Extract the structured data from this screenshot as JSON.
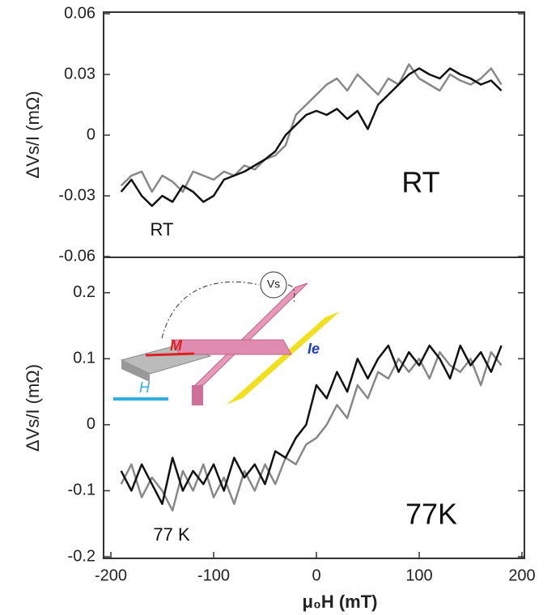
{
  "chart_data": [
    {
      "type": "line",
      "ylabel": "ΔVs/I (mΩ)",
      "annotations": [
        "RT",
        "RT"
      ],
      "x": [
        -190,
        -180,
        -170,
        -160,
        -150,
        -140,
        -130,
        -120,
        -110,
        -100,
        -90,
        -80,
        -70,
        -60,
        -50,
        -40,
        -30,
        -20,
        -10,
        0,
        10,
        20,
        30,
        40,
        50,
        60,
        70,
        80,
        90,
        100,
        110,
        120,
        130,
        140,
        150,
        160,
        170,
        180
      ],
      "xlim": [
        -200,
        200
      ],
      "ylim": [
        -0.06,
        0.06
      ],
      "yticks": [
        0.06,
        0.03,
        0,
        -0.03,
        -0.06
      ],
      "series": [
        {
          "color": "#888888",
          "values": [
            -0.025,
            -0.02,
            -0.018,
            -0.028,
            -0.02,
            -0.023,
            -0.028,
            -0.018,
            -0.02,
            -0.022,
            -0.018,
            -0.02,
            -0.015,
            -0.017,
            -0.012,
            -0.01,
            -0.005,
            0.01,
            0.015,
            0.02,
            0.025,
            0.028,
            0.022,
            0.03,
            0.025,
            0.02,
            0.028,
            0.025,
            0.035,
            0.028,
            0.025,
            0.022,
            0.03,
            0.027,
            0.025,
            0.028,
            0.033,
            0.025
          ]
        },
        {
          "color": "#111111",
          "values": [
            -0.028,
            -0.022,
            -0.03,
            -0.035,
            -0.03,
            -0.033,
            -0.025,
            -0.028,
            -0.033,
            -0.03,
            -0.022,
            -0.02,
            -0.018,
            -0.015,
            -0.012,
            -0.008,
            0,
            0.005,
            0.01,
            0.012,
            0.01,
            0.013,
            0.008,
            0.012,
            0.003,
            0.015,
            0.02,
            0.025,
            0.03,
            0.033,
            0.03,
            0.028,
            0.033,
            0.03,
            0.028,
            0.025,
            0.027,
            0.022
          ]
        }
      ]
    },
    {
      "type": "line",
      "ylabel": "ΔVs/I (mΩ)",
      "xlabel": "μ₀H (mT)",
      "annotations": [
        "77K",
        "77 K"
      ],
      "inset_labels": [
        "Vs",
        "M",
        "Ie",
        "H"
      ],
      "x": [
        -190,
        -180,
        -170,
        -160,
        -150,
        -140,
        -130,
        -120,
        -110,
        -100,
        -90,
        -80,
        -70,
        -60,
        -50,
        -40,
        -30,
        -20,
        -10,
        0,
        10,
        20,
        30,
        40,
        50,
        60,
        70,
        80,
        90,
        100,
        110,
        120,
        130,
        140,
        150,
        160,
        170,
        180
      ],
      "xlim": [
        -200,
        200
      ],
      "xticks": [
        -200,
        -100,
        0,
        100,
        200
      ],
      "ylim": [
        -0.2,
        0.25
      ],
      "yticks": [
        0.2,
        0.1,
        0,
        -0.1,
        -0.2
      ],
      "series": [
        {
          "color": "#888888",
          "values": [
            -0.09,
            -0.06,
            -0.11,
            -0.08,
            -0.1,
            -0.13,
            -0.07,
            -0.1,
            -0.06,
            -0.11,
            -0.08,
            -0.12,
            -0.07,
            -0.1,
            -0.06,
            -0.09,
            -0.05,
            -0.06,
            -0.03,
            -0.02,
            0,
            0.03,
            0.01,
            0.06,
            0.04,
            0.08,
            0.07,
            0.1,
            0.08,
            0.1,
            0.07,
            0.11,
            0.09,
            0.08,
            0.1,
            0.06,
            0.11,
            0.09
          ]
        },
        {
          "color": "#111111",
          "values": [
            -0.07,
            -0.1,
            -0.06,
            -0.09,
            -0.12,
            -0.05,
            -0.1,
            -0.07,
            -0.09,
            -0.06,
            -0.1,
            -0.05,
            -0.08,
            -0.06,
            -0.09,
            -0.04,
            -0.05,
            -0.02,
            0,
            0.06,
            0.04,
            0.08,
            0.05,
            0.1,
            0.07,
            0.1,
            0.12,
            0.08,
            0.11,
            0.09,
            0.12,
            0.1,
            0.07,
            0.12,
            0.09,
            0.11,
            0.08,
            0.12
          ]
        }
      ]
    }
  ]
}
